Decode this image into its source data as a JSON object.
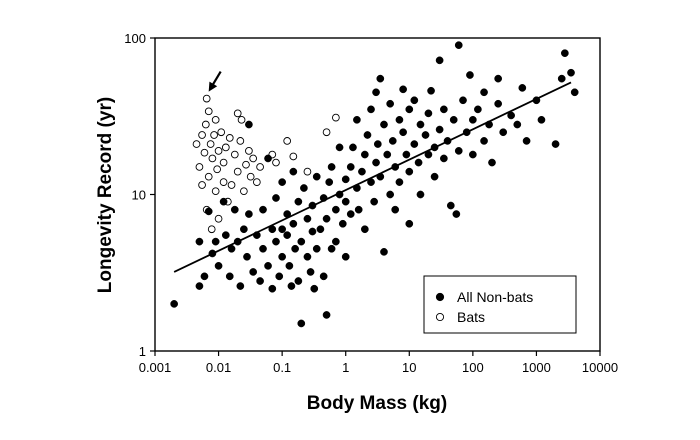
{
  "chart_data": {
    "type": "scatter",
    "title": "",
    "xlabel": "Body Mass (kg)",
    "ylabel": "Longevity Record (yr)",
    "x_scale": "log",
    "y_scale": "log",
    "xlim": [
      0.001,
      10000
    ],
    "ylim": [
      1,
      100
    ],
    "x_ticks": [
      {
        "value": 0.001,
        "label": "0.001"
      },
      {
        "value": 0.01,
        "label": "0.01"
      },
      {
        "value": 0.1,
        "label": "0.1"
      },
      {
        "value": 1,
        "label": "1"
      },
      {
        "value": 10,
        "label": "10"
      },
      {
        "value": 100,
        "label": "100"
      },
      {
        "value": 1000,
        "label": "1000"
      },
      {
        "value": 10000,
        "label": "10000"
      }
    ],
    "y_ticks": [
      {
        "value": 1,
        "label": "1"
      },
      {
        "value": 10,
        "label": "10"
      },
      {
        "value": 100,
        "label": "100"
      }
    ],
    "grid": false,
    "legend_position": "bottom-right",
    "series": [
      {
        "name": "All Non-bats",
        "marker": "filled-circle",
        "color": "#000000",
        "points": [
          [
            0.002,
            2.0
          ],
          [
            0.005,
            2.6
          ],
          [
            0.005,
            5.0
          ],
          [
            0.006,
            3.0
          ],
          [
            0.007,
            7.8
          ],
          [
            0.008,
            4.2
          ],
          [
            0.009,
            5.0
          ],
          [
            0.01,
            3.5
          ],
          [
            0.012,
            9.0
          ],
          [
            0.013,
            5.5
          ],
          [
            0.015,
            3.0
          ],
          [
            0.016,
            4.5
          ],
          [
            0.018,
            8.0
          ],
          [
            0.02,
            5.0
          ],
          [
            0.022,
            2.6
          ],
          [
            0.025,
            6.0
          ],
          [
            0.028,
            4.0
          ],
          [
            0.03,
            28.0
          ],
          [
            0.03,
            7.5
          ],
          [
            0.035,
            3.2
          ],
          [
            0.04,
            5.5
          ],
          [
            0.045,
            2.8
          ],
          [
            0.05,
            4.5
          ],
          [
            0.05,
            8.0
          ],
          [
            0.06,
            3.5
          ],
          [
            0.06,
            17.0
          ],
          [
            0.07,
            6.0
          ],
          [
            0.07,
            2.5
          ],
          [
            0.08,
            5.0
          ],
          [
            0.08,
            9.5
          ],
          [
            0.09,
            3.0
          ],
          [
            0.1,
            6.0
          ],
          [
            0.1,
            4.0
          ],
          [
            0.1,
            12.0
          ],
          [
            0.12,
            5.5
          ],
          [
            0.12,
            7.5
          ],
          [
            0.13,
            3.5
          ],
          [
            0.14,
            2.6
          ],
          [
            0.15,
            6.5
          ],
          [
            0.15,
            14.0
          ],
          [
            0.16,
            4.5
          ],
          [
            0.18,
            2.8
          ],
          [
            0.18,
            9.0
          ],
          [
            0.2,
            1.5
          ],
          [
            0.2,
            5.0
          ],
          [
            0.22,
            11.0
          ],
          [
            0.25,
            4.0
          ],
          [
            0.25,
            7.0
          ],
          [
            0.28,
            3.2
          ],
          [
            0.3,
            8.5
          ],
          [
            0.3,
            5.8
          ],
          [
            0.32,
            2.5
          ],
          [
            0.35,
            13.0
          ],
          [
            0.35,
            4.5
          ],
          [
            0.4,
            6.0
          ],
          [
            0.45,
            9.5
          ],
          [
            0.45,
            3.0
          ],
          [
            0.5,
            1.7
          ],
          [
            0.5,
            7.0
          ],
          [
            0.55,
            12.0
          ],
          [
            0.6,
            4.5
          ],
          [
            0.6,
            15.0
          ],
          [
            0.7,
            8.0
          ],
          [
            0.7,
            5.0
          ],
          [
            0.8,
            10.0
          ],
          [
            0.8,
            20.0
          ],
          [
            0.9,
            6.5
          ],
          [
            1.0,
            9.0
          ],
          [
            1.0,
            12.5
          ],
          [
            1.0,
            4.0
          ],
          [
            1.2,
            15.0
          ],
          [
            1.2,
            7.5
          ],
          [
            1.3,
            20.0
          ],
          [
            1.5,
            11.0
          ],
          [
            1.5,
            30.0
          ],
          [
            1.6,
            8.0
          ],
          [
            1.8,
            14.0
          ],
          [
            2.0,
            18.0
          ],
          [
            2.0,
            6.0
          ],
          [
            2.2,
            24.0
          ],
          [
            2.5,
            12.0
          ],
          [
            2.5,
            35.0
          ],
          [
            2.8,
            9.0
          ],
          [
            3.0,
            16.0
          ],
          [
            3.0,
            45.0
          ],
          [
            3.2,
            21.0
          ],
          [
            3.5,
            55.0
          ],
          [
            3.5,
            13.0
          ],
          [
            4.0,
            28.0
          ],
          [
            4.0,
            4.3
          ],
          [
            4.5,
            18.0
          ],
          [
            5.0,
            10.0
          ],
          [
            5.0,
            38.0
          ],
          [
            5.5,
            22.0
          ],
          [
            6.0,
            15.0
          ],
          [
            6.0,
            8.0
          ],
          [
            7.0,
            30.0
          ],
          [
            7.0,
            12.0
          ],
          [
            8.0,
            25.0
          ],
          [
            8.0,
            47.0
          ],
          [
            9.0,
            18.0
          ],
          [
            10.0,
            14.0
          ],
          [
            10.0,
            35.0
          ],
          [
            10.0,
            6.5
          ],
          [
            12.0,
            21.0
          ],
          [
            12.0,
            40.0
          ],
          [
            14.0,
            16.0
          ],
          [
            15.0,
            28.0
          ],
          [
            15.0,
            10.0
          ],
          [
            18.0,
            24.0
          ],
          [
            20.0,
            33.0
          ],
          [
            20.0,
            18.0
          ],
          [
            22.0,
            46.0
          ],
          [
            25.0,
            20.0
          ],
          [
            25.0,
            13.0
          ],
          [
            30.0,
            26.0
          ],
          [
            30.0,
            72.0
          ],
          [
            35.0,
            35.0
          ],
          [
            35.0,
            17.0
          ],
          [
            40.0,
            22.0
          ],
          [
            45.0,
            8.5
          ],
          [
            50.0,
            30.0
          ],
          [
            55.0,
            7.5
          ],
          [
            60.0,
            90.0
          ],
          [
            60.0,
            19.0
          ],
          [
            70.0,
            40.0
          ],
          [
            80.0,
            25.0
          ],
          [
            90.0,
            58.0
          ],
          [
            100.0,
            18.0
          ],
          [
            100.0,
            30.0
          ],
          [
            120.0,
            35.0
          ],
          [
            150.0,
            45.0
          ],
          [
            150.0,
            22.0
          ],
          [
            180.0,
            28.0
          ],
          [
            200.0,
            16.0
          ],
          [
            250.0,
            38.0
          ],
          [
            250.0,
            55.0
          ],
          [
            300.0,
            25.0
          ],
          [
            400.0,
            32.0
          ],
          [
            500.0,
            28.0
          ],
          [
            600.0,
            48.0
          ],
          [
            700.0,
            22.0
          ],
          [
            1000.0,
            40.0
          ],
          [
            1200.0,
            30.0
          ],
          [
            2000.0,
            21.0
          ],
          [
            2500.0,
            55.0
          ],
          [
            2800.0,
            80.0
          ],
          [
            3500.0,
            60.0
          ],
          [
            4000.0,
            45.0
          ]
        ]
      },
      {
        "name": "Bats",
        "marker": "open-circle",
        "color": "#000000",
        "points": [
          [
            0.0045,
            21.0
          ],
          [
            0.005,
            15.0
          ],
          [
            0.0055,
            24.0
          ],
          [
            0.0055,
            11.5
          ],
          [
            0.006,
            18.5
          ],
          [
            0.0063,
            28.0
          ],
          [
            0.0065,
            41.0
          ],
          [
            0.0065,
            8.0
          ],
          [
            0.007,
            13.0
          ],
          [
            0.007,
            34.0
          ],
          [
            0.0075,
            21.0
          ],
          [
            0.0078,
            6.0
          ],
          [
            0.008,
            17.0
          ],
          [
            0.0085,
            24.0
          ],
          [
            0.009,
            10.5
          ],
          [
            0.009,
            30.0
          ],
          [
            0.0095,
            14.5
          ],
          [
            0.01,
            19.0
          ],
          [
            0.01,
            7.0
          ],
          [
            0.011,
            25.0
          ],
          [
            0.012,
            12.0
          ],
          [
            0.012,
            16.0
          ],
          [
            0.013,
            20.0
          ],
          [
            0.014,
            9.0
          ],
          [
            0.015,
            23.0
          ],
          [
            0.016,
            11.5
          ],
          [
            0.018,
            18.0
          ],
          [
            0.02,
            14.0
          ],
          [
            0.02,
            33.0
          ],
          [
            0.022,
            22.0
          ],
          [
            0.023,
            30.0
          ],
          [
            0.025,
            10.5
          ],
          [
            0.027,
            15.5
          ],
          [
            0.03,
            19.0
          ],
          [
            0.032,
            13.0
          ],
          [
            0.035,
            17.0
          ],
          [
            0.04,
            12.0
          ],
          [
            0.045,
            15.0
          ],
          [
            0.07,
            18.0
          ],
          [
            0.08,
            16.0
          ],
          [
            0.12,
            22.0
          ],
          [
            0.15,
            17.5
          ],
          [
            0.25,
            14.0
          ],
          [
            0.5,
            25.0
          ],
          [
            0.7,
            31.0
          ]
        ]
      }
    ],
    "trendline": {
      "from": [
        0.002,
        3.2
      ],
      "to": [
        3500,
        52.0
      ]
    },
    "annotation": {
      "type": "arrow",
      "target_point": [
        0.0065,
        41.0
      ]
    }
  }
}
